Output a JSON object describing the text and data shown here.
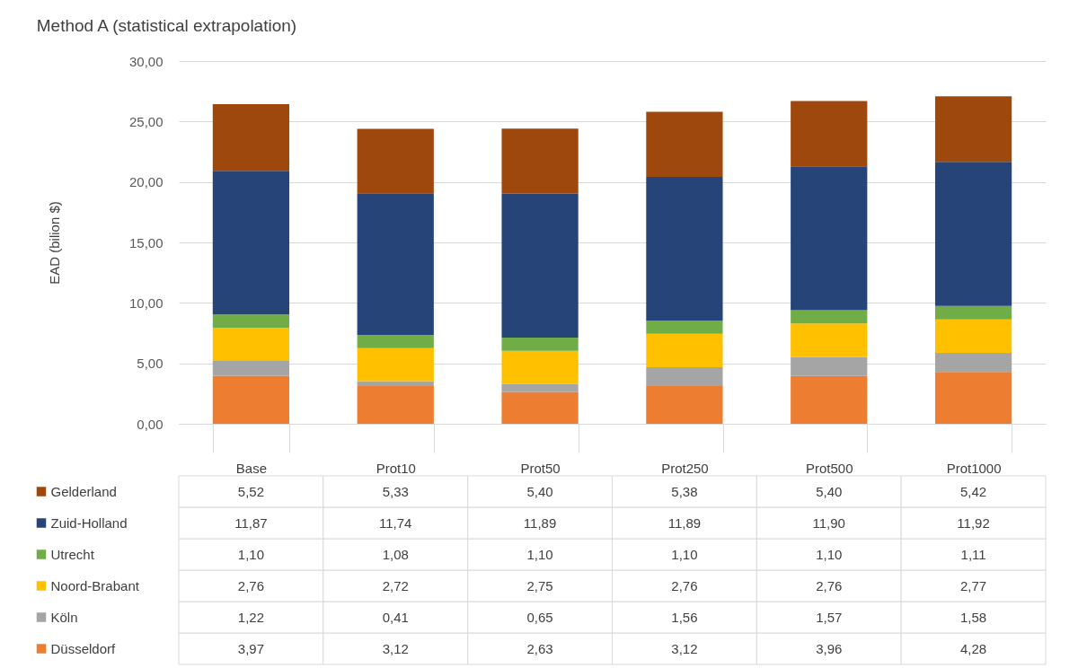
{
  "chart_data": {
    "type": "bar",
    "title": "Method A (statistical extrapolation)",
    "ylabel": "EAD (bilion $)",
    "categories": [
      "Base",
      "Prot10",
      "Prot50",
      "Prot250",
      "Prot500",
      "Prot1000"
    ],
    "stacked": true,
    "grid": "y",
    "legend": "bottom",
    "ylim": [
      0,
      30
    ],
    "yticks": [
      {
        "value": 0,
        "label": "0,00"
      },
      {
        "value": 5,
        "label": "5,00"
      },
      {
        "value": 10,
        "label": "10,00"
      },
      {
        "value": 15,
        "label": "15,00"
      },
      {
        "value": 20,
        "label": "20,00"
      },
      {
        "value": 25,
        "label": "25,00"
      },
      {
        "value": 30,
        "label": "30,00"
      }
    ],
    "series": [
      {
        "name": "Düsseldorf",
        "color": "#ed7d31",
        "values": [
          3.97,
          3.12,
          2.63,
          3.12,
          3.96,
          4.28
        ],
        "value_labels": [
          "3,97",
          "3,12",
          "2,63",
          "3,12",
          "3,96",
          "4,28"
        ]
      },
      {
        "name": "Köln",
        "color": "#a5a5a5",
        "values": [
          1.22,
          0.41,
          0.65,
          1.56,
          1.57,
          1.58
        ],
        "value_labels": [
          "1,22",
          "0,41",
          "0,65",
          "1,56",
          "1,57",
          "1,58"
        ]
      },
      {
        "name": "Noord-Brabant",
        "color": "#ffc000",
        "values": [
          2.76,
          2.72,
          2.75,
          2.76,
          2.76,
          2.77
        ],
        "value_labels": [
          "2,76",
          "2,72",
          "2,75",
          "2,76",
          "2,76",
          "2,77"
        ]
      },
      {
        "name": "Utrecht",
        "color": "#70ad47",
        "values": [
          1.1,
          1.08,
          1.1,
          1.1,
          1.1,
          1.11
        ],
        "value_labels": [
          "1,10",
          "1,08",
          "1,10",
          "1,10",
          "1,10",
          "1,11"
        ]
      },
      {
        "name": "Zuid-Holland",
        "color": "#264478",
        "values": [
          11.87,
          11.74,
          11.89,
          11.89,
          11.9,
          11.92
        ],
        "value_labels": [
          "11,87",
          "11,74",
          "11,89",
          "11,89",
          "11,90",
          "11,92"
        ]
      },
      {
        "name": "Gelderland",
        "color": "#9e480e",
        "values": [
          5.52,
          5.33,
          5.4,
          5.38,
          5.4,
          5.42
        ],
        "value_labels": [
          "5,52",
          "5,33",
          "5,40",
          "5,38",
          "5,40",
          "5,42"
        ]
      }
    ]
  }
}
